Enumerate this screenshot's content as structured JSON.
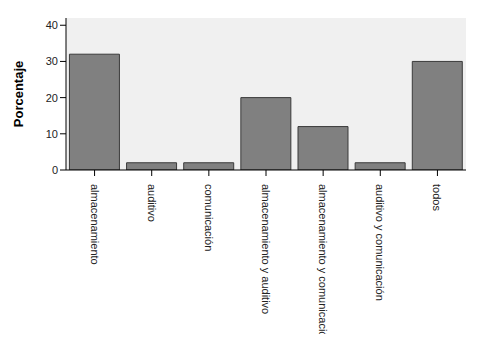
{
  "chart_data": {
    "type": "bar",
    "y_label": "Porcentaje",
    "categories": [
      "almacenamiento",
      "auditivo",
      "comunicación",
      "almacenamiento y auditivo",
      "almacenamiento y comunicación",
      "auditivo y comunicación",
      "todos"
    ],
    "values": [
      32,
      2,
      2,
      20,
      12,
      2,
      30
    ],
    "color": "#808080",
    "ylim": [
      0,
      42
    ],
    "yticks": [
      0,
      10,
      20,
      30,
      40
    ],
    "grid": false
  }
}
